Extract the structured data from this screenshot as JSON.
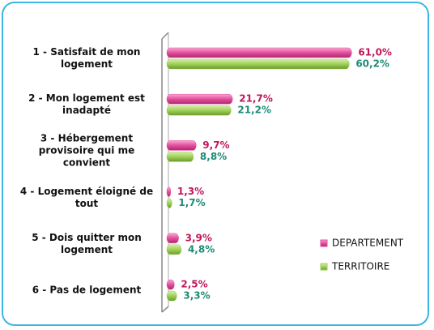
{
  "chart_data": {
    "type": "bar",
    "orientation": "horizontal",
    "categories": [
      "1 - Satisfait de mon logement",
      "2 - Mon logement est inadapté",
      "3 - Hébergement provisoire qui me convient",
      "4 - Logement éloigné de tout",
      "5 - Dois quitter mon logement",
      "6 - Pas de logement"
    ],
    "series": [
      {
        "name": "DEPARTEMENT",
        "color": "#e34f9c",
        "label_color": "#c0185c",
        "values": [
          61.0,
          21.7,
          9.7,
          1.3,
          3.9,
          2.5
        ],
        "value_labels": [
          "61,0%",
          "21,7%",
          "9,7%",
          "1,3%",
          "3,9%",
          "2,5%"
        ]
      },
      {
        "name": "TERRITOIRE",
        "color": "#9fd05a",
        "label_color": "#1f8a78",
        "values": [
          60.2,
          21.2,
          8.8,
          1.7,
          4.8,
          3.3
        ],
        "value_labels": [
          "60,2%",
          "21,2%",
          "8,8%",
          "1,7%",
          "4,8%",
          "3,3%"
        ]
      }
    ],
    "xlim": [
      0,
      70
    ],
    "legend": "right"
  }
}
